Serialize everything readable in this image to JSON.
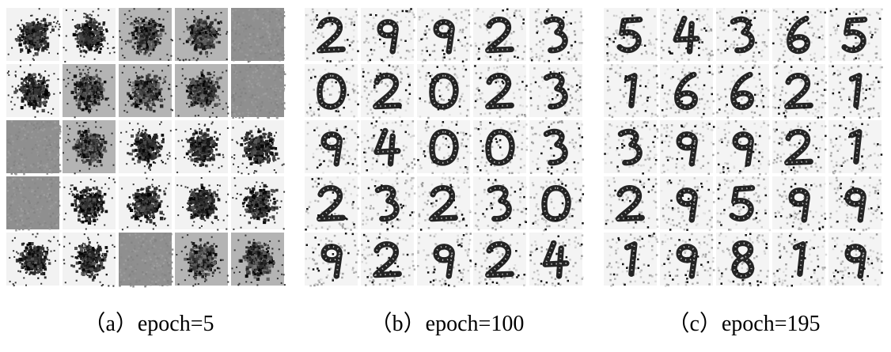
{
  "panels": [
    {
      "caption": "（a）epoch=5",
      "grid": [
        [
          "noise",
          "noise",
          "gray",
          "gray",
          "flat"
        ],
        [
          "noise",
          "gray",
          "gray",
          "gray",
          "flat"
        ],
        [
          "flat",
          "gray",
          "noise",
          "noise",
          "noise"
        ],
        [
          "flat",
          "noise",
          "noise",
          "noise",
          "noise"
        ],
        [
          "noise",
          "noise",
          "flat",
          "gray",
          "gray"
        ]
      ]
    },
    {
      "caption": "（b）epoch=100",
      "grid": [
        [
          "2",
          "9",
          "9",
          "2",
          "3"
        ],
        [
          "0",
          "2",
          "0",
          "2",
          "3"
        ],
        [
          "9",
          "4",
          "0",
          "0",
          "3"
        ],
        [
          "2",
          "3",
          "2",
          "3",
          "0"
        ],
        [
          "9",
          "2",
          "9",
          "2",
          "4"
        ]
      ]
    },
    {
      "caption": "（c）epoch=195",
      "grid": [
        [
          "5",
          "4",
          "3",
          "6",
          "5"
        ],
        [
          "1",
          "6",
          "6",
          "2",
          "1"
        ],
        [
          "3",
          "9",
          "9",
          "2",
          "1"
        ],
        [
          "2",
          "9",
          "5",
          "9",
          "9"
        ],
        [
          "1",
          "9",
          "8",
          "1",
          "9"
        ]
      ]
    }
  ]
}
